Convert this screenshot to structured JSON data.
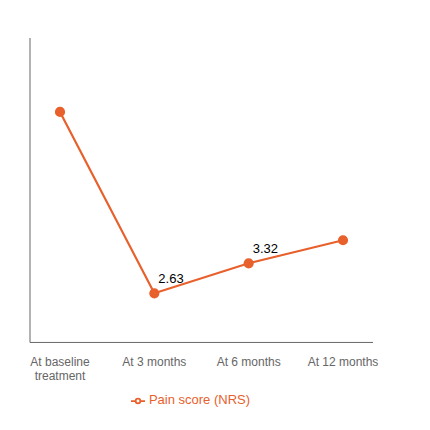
{
  "chart_data": {
    "type": "line",
    "categories": [
      "At baseline\ntreatment",
      "At 3 months",
      "At 6 months",
      "At 12 months"
    ],
    "series": [
      {
        "name": "Pain score (NRS)",
        "color": "#E8602C",
        "values": [
          6.8,
          2.63,
          3.32,
          3.85
        ],
        "value_labels": [
          null,
          "2.63",
          "3.32",
          null
        ],
        "marker": "o"
      }
    ],
    "ylim": [
      1.5,
      8.5
    ],
    "tick_labels": "x",
    "legend": "bottom"
  }
}
